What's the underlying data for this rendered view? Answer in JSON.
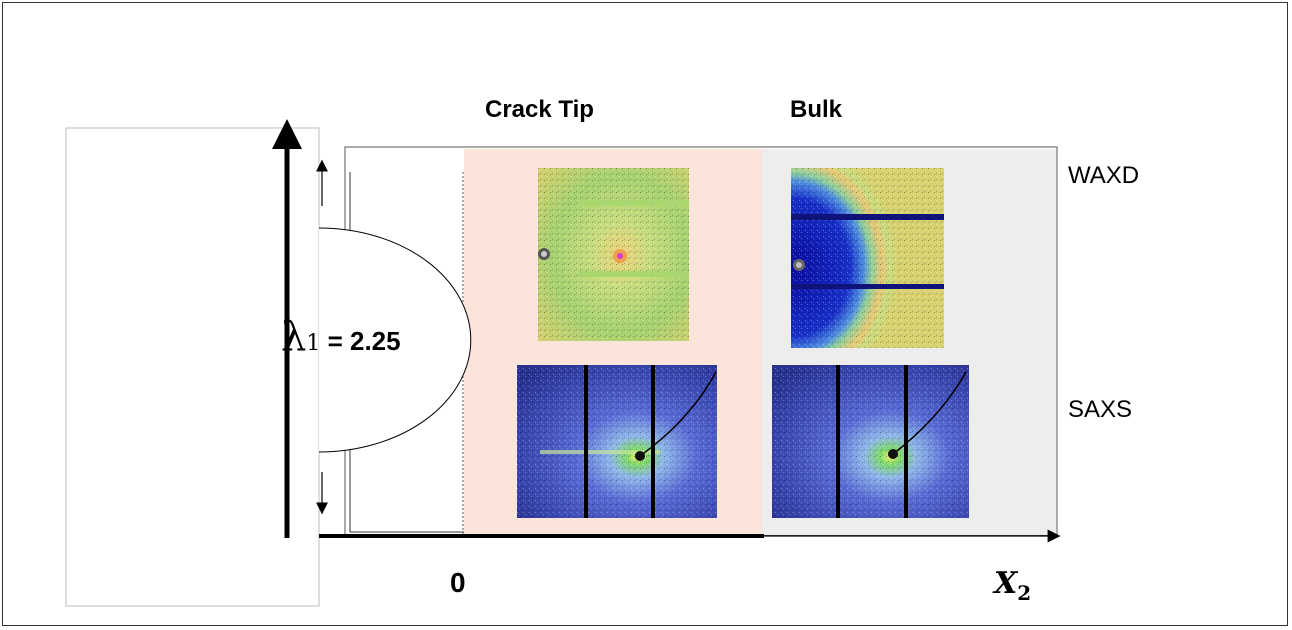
{
  "labels": {
    "crack_tip": "Crack Tip",
    "bulk": "Bulk",
    "waxd": "WAXD",
    "saxs": "SAXS",
    "lambda_symbol": "λ",
    "lambda_subscript": "1",
    "stretch_ratio_value": " = 2.25",
    "origin": "0",
    "x_axis_var": "X",
    "x_axis_sub": "2"
  },
  "colors": {
    "crack_tip_region": "#fbe4da",
    "bulk_region": "#ededed",
    "axis": "#000000"
  }
}
